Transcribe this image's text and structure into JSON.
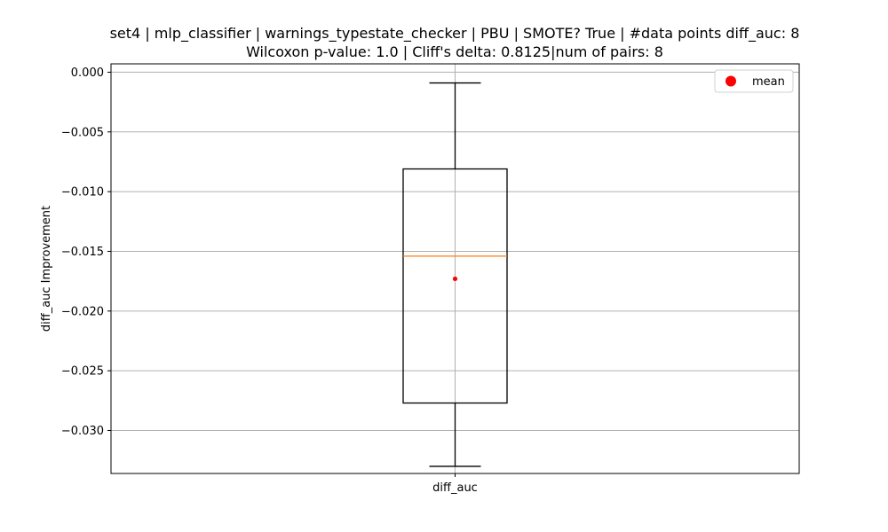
{
  "chart_data": {
    "type": "box",
    "title_lines": [
      "set4 | mlp_classifier | warnings_typestate_checker | PBU | SMOTE? True | #data points diff_auc: 8",
      "Wilcoxon p-value: 1.0 | Cliff's delta: 0.8125|num of pairs: 8"
    ],
    "xlabel": "",
    "ylabel": "diff_auc Improvement",
    "categories": [
      "diff_auc"
    ],
    "ylim": [
      -0.0336,
      0.0007
    ],
    "y_ticks": [
      0.0,
      -0.005,
      -0.01,
      -0.015,
      -0.02,
      -0.025,
      -0.03
    ],
    "y_tick_labels": [
      "0.000",
      "−0.005",
      "−0.010",
      "−0.015",
      "−0.020",
      "−0.025",
      "−0.030"
    ],
    "grid": true,
    "boxes": [
      {
        "category": "diff_auc",
        "whisker_low": -0.033,
        "q1": -0.0277,
        "median": -0.0154,
        "q3": -0.0081,
        "whisker_high": -0.0009,
        "mean": -0.0173
      }
    ],
    "legend": {
      "placement": "top-right",
      "entries": [
        {
          "label": "mean",
          "marker": "circle",
          "color": "#ff0000"
        }
      ]
    },
    "colors": {
      "box": "#000000",
      "median": "#ff7f0e",
      "mean": "#ff0000",
      "grid": "#b0b0b0"
    }
  }
}
